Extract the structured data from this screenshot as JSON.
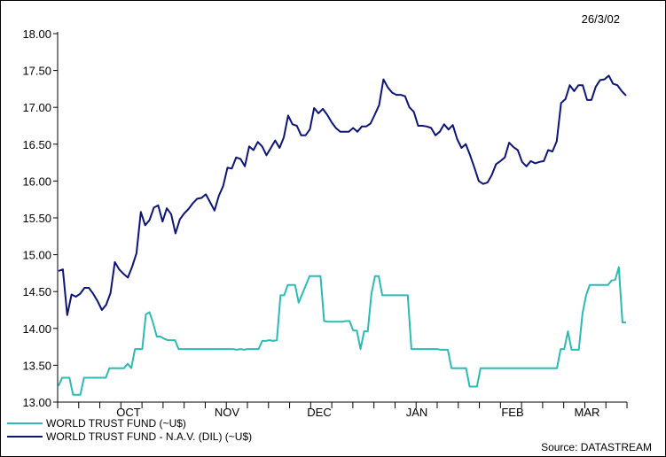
{
  "header": {
    "date": "26/3/02"
  },
  "source": "Source: DATASTREAM",
  "chart_data": {
    "type": "line",
    "title": "",
    "xlabel": "",
    "ylabel": "",
    "ylim": [
      13.0,
      18.0
    ],
    "yticks": [
      "13.00",
      "13.50",
      "14.00",
      "14.50",
      "15.00",
      "15.50",
      "16.00",
      "16.50",
      "17.00",
      "17.50",
      "18.00"
    ],
    "month_labels": [
      "OCT",
      "NOV",
      "DEC",
      "JAN",
      "FEB",
      "MAR"
    ],
    "series": [
      {
        "name": "WORLD TRUST FUND (~U$)",
        "color": "#2bbbb4",
        "values": [
          13.22,
          13.33,
          13.33,
          13.33,
          13.1,
          13.1,
          13.1,
          13.33,
          13.33,
          13.33,
          13.33,
          13.33,
          13.33,
          13.33,
          13.46,
          13.46,
          13.46,
          13.46,
          13.46,
          13.52,
          13.46,
          13.72,
          13.72,
          13.72,
          14.19,
          14.22,
          14.07,
          13.89,
          13.89,
          13.86,
          13.84,
          13.84,
          13.84,
          13.72,
          13.72,
          13.72,
          13.72,
          13.72,
          13.72,
          13.72,
          13.72,
          13.72,
          13.72,
          13.72,
          13.72,
          13.72,
          13.72,
          13.72,
          13.72,
          13.71,
          13.72,
          13.71,
          13.72,
          13.72,
          13.72,
          13.72,
          13.83,
          13.83,
          13.84,
          13.83,
          13.84,
          14.45,
          14.45,
          14.59,
          14.59,
          14.59,
          14.35,
          14.47,
          14.59,
          14.71,
          14.71,
          14.71,
          14.71,
          14.1,
          14.09,
          14.09,
          14.09,
          14.09,
          14.09,
          14.1,
          14.1,
          13.97,
          13.97,
          13.72,
          13.96,
          13.96,
          14.47,
          14.71,
          14.71,
          14.45,
          14.45,
          14.45,
          14.45,
          14.45,
          14.45,
          14.45,
          14.45,
          13.72,
          13.72,
          13.72,
          13.72,
          13.72,
          13.72,
          13.72,
          13.72,
          13.71,
          13.71,
          13.71,
          13.46,
          13.46,
          13.46,
          13.46,
          13.46,
          13.21,
          13.21,
          13.21,
          13.46,
          13.46,
          13.46,
          13.46,
          13.46,
          13.46,
          13.46,
          13.46,
          13.46,
          13.46,
          13.46,
          13.46,
          13.46,
          13.46,
          13.46,
          13.46,
          13.46,
          13.46,
          13.46,
          13.46,
          13.46,
          13.46,
          13.72,
          13.72,
          13.96,
          13.71,
          13.71,
          13.71,
          14.2,
          14.45,
          14.59,
          14.59,
          14.59,
          14.59,
          14.59,
          14.59,
          14.65,
          14.66,
          14.83,
          14.08,
          14.08
        ]
      },
      {
        "name": "WORLD TRUST FUND - N.A.V. (DIL) (~U$)",
        "color": "#0c1478",
        "values": [
          14.78,
          14.8,
          14.18,
          14.46,
          14.43,
          14.47,
          14.55,
          14.55,
          14.47,
          14.37,
          14.25,
          14.32,
          14.48,
          14.9,
          14.8,
          14.74,
          14.69,
          14.84,
          15.02,
          15.58,
          15.4,
          15.47,
          15.64,
          15.67,
          15.45,
          15.63,
          15.55,
          15.29,
          15.48,
          15.56,
          15.62,
          15.7,
          15.76,
          15.77,
          15.82,
          15.71,
          15.6,
          15.8,
          15.93,
          16.18,
          16.17,
          16.32,
          16.3,
          16.2,
          16.47,
          16.42,
          16.53,
          16.47,
          16.35,
          16.45,
          16.55,
          16.45,
          16.59,
          16.89,
          16.77,
          16.75,
          16.62,
          16.62,
          16.7,
          16.99,
          16.92,
          16.98,
          16.9,
          16.8,
          16.72,
          16.67,
          16.67,
          16.67,
          16.72,
          16.67,
          16.74,
          16.74,
          16.78,
          16.9,
          17.03,
          17.38,
          17.27,
          17.2,
          17.17,
          17.17,
          17.15,
          17.0,
          16.94,
          16.75,
          16.75,
          16.74,
          16.72,
          16.62,
          16.67,
          16.77,
          16.7,
          16.76,
          16.57,
          16.45,
          16.5,
          16.35,
          16.18,
          16.0,
          15.96,
          15.98,
          16.08,
          16.23,
          16.27,
          16.32,
          16.52,
          16.46,
          16.42,
          16.26,
          16.2,
          16.27,
          16.24,
          16.26,
          16.27,
          16.42,
          16.4,
          16.54,
          17.06,
          17.11,
          17.3,
          17.22,
          17.3,
          17.3,
          17.1,
          17.1,
          17.28,
          17.37,
          17.38,
          17.43,
          17.32,
          17.3,
          17.22,
          17.16
        ]
      }
    ]
  }
}
